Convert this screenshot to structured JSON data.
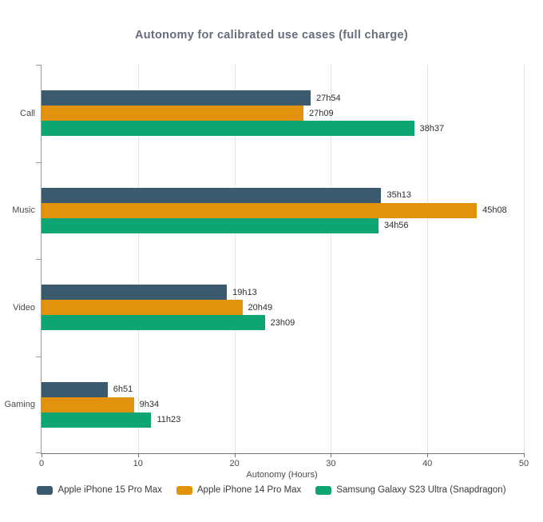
{
  "chart_data": {
    "type": "bar",
    "orientation": "horizontal",
    "title": "Autonomy for calibrated use cases (full charge)",
    "xlabel": "Autonomy (Hours)",
    "xlim": [
      0,
      50
    ],
    "xticks": [
      0,
      10,
      20,
      30,
      40,
      50
    ],
    "grid": "vertical-lines",
    "legend_position": "bottom",
    "categories": [
      "Call",
      "Music",
      "Video",
      "Gaming"
    ],
    "series": [
      {
        "name": "Apple iPhone 15 Pro Max",
        "color": "#3c5a6d",
        "labels": [
          "27h54",
          "35h13",
          "19h13",
          "6h51"
        ],
        "values": [
          27.9,
          35.22,
          19.22,
          6.85
        ]
      },
      {
        "name": "Apple iPhone 14 Pro Max",
        "color": "#e2930e",
        "labels": [
          "27h09",
          "45h08",
          "20h49",
          "9h34"
        ],
        "values": [
          27.15,
          45.13,
          20.82,
          9.57
        ]
      },
      {
        "name": "Samsung Galaxy S23 Ultra (Snapdragon)",
        "color": "#0fa572",
        "labels": [
          "38h37",
          "34h56",
          "23h09",
          "11h23"
        ],
        "values": [
          38.62,
          34.93,
          23.15,
          11.38
        ]
      }
    ]
  }
}
